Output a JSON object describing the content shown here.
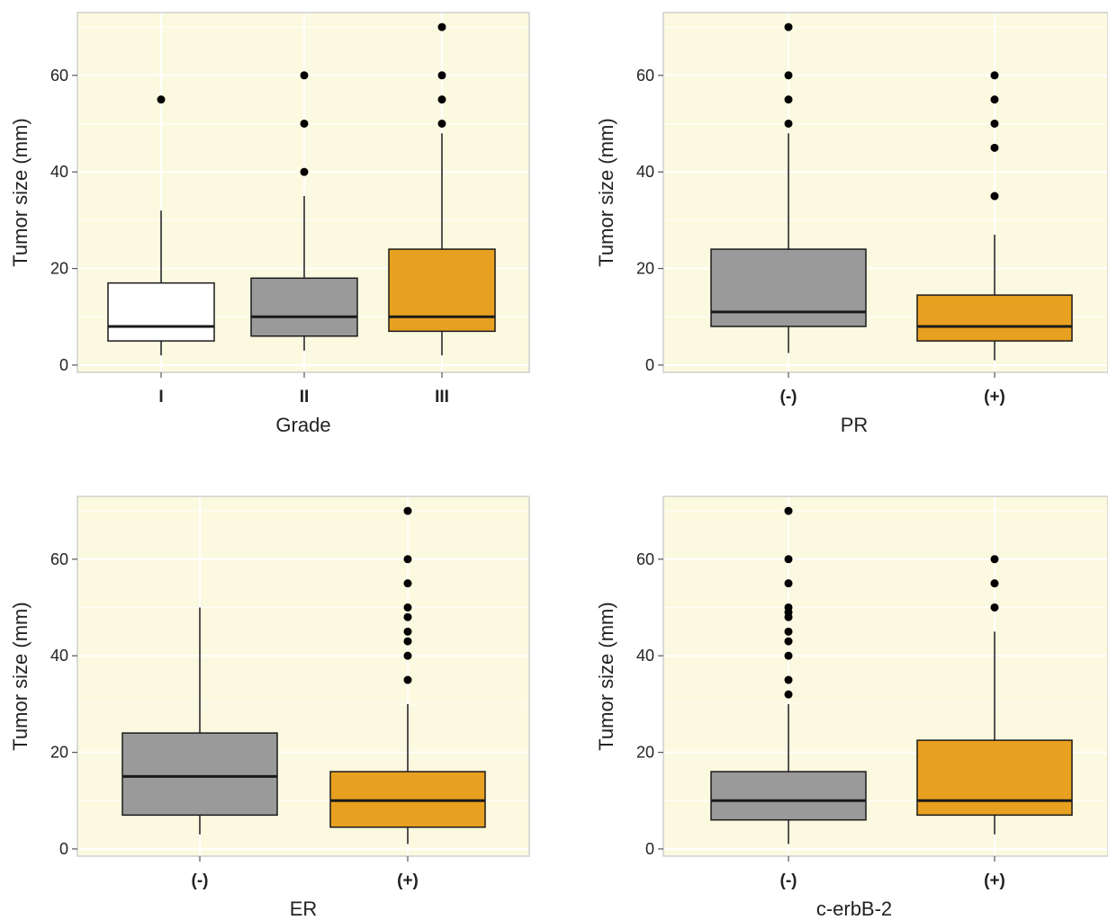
{
  "chart_data": [
    {
      "type": "box",
      "xlabel": "Grade",
      "ylabel": "Tumor size (mm)",
      "ylim": [
        -1.5,
        73
      ],
      "y_ticks": [
        0,
        20,
        40,
        60
      ],
      "grid": true,
      "categories": [
        "I",
        "II",
        "III"
      ],
      "boxes": [
        {
          "category": "I",
          "whisker_low": 2,
          "q1": 5,
          "median": 8,
          "q3": 17,
          "whisker_high": 32,
          "outliers": [
            55
          ],
          "fill": "#ffffff"
        },
        {
          "category": "II",
          "whisker_low": 3,
          "q1": 6,
          "median": 10,
          "q3": 18,
          "whisker_high": 35,
          "outliers": [
            40,
            50,
            60
          ],
          "fill": "#9a9a9a"
        },
        {
          "category": "III",
          "whisker_low": 2,
          "q1": 7,
          "median": 10,
          "q3": 24,
          "whisker_high": 48,
          "outliers": [
            50,
            55,
            60,
            70
          ],
          "fill": "#e8a020"
        }
      ]
    },
    {
      "type": "box",
      "xlabel": "PR",
      "ylabel": "Tumor size (mm)",
      "ylim": [
        -1.5,
        73
      ],
      "y_ticks": [
        0,
        20,
        40,
        60
      ],
      "grid": true,
      "categories": [
        "(-)",
        "(+)"
      ],
      "boxes": [
        {
          "category": "(-)",
          "whisker_low": 2.5,
          "q1": 8,
          "median": 11,
          "q3": 24,
          "whisker_high": 48,
          "outliers": [
            50,
            55,
            60,
            70
          ],
          "fill": "#9a9a9a"
        },
        {
          "category": "(+)",
          "whisker_low": 1,
          "q1": 5,
          "median": 8,
          "q3": 14.5,
          "whisker_high": 27,
          "outliers": [
            35,
            45,
            50,
            55,
            60
          ],
          "fill": "#e8a020"
        }
      ]
    },
    {
      "type": "box",
      "xlabel": "ER",
      "ylabel": "Tumor size (mm)",
      "ylim": [
        -1.5,
        73
      ],
      "y_ticks": [
        0,
        20,
        40,
        60
      ],
      "grid": true,
      "categories": [
        "(-)",
        "(+)"
      ],
      "boxes": [
        {
          "category": "(-)",
          "whisker_low": 3,
          "q1": 7,
          "median": 15,
          "q3": 24,
          "whisker_high": 50,
          "outliers": [],
          "fill": "#9a9a9a"
        },
        {
          "category": "(+)",
          "whisker_low": 1,
          "q1": 4.5,
          "median": 10,
          "q3": 16,
          "whisker_high": 30,
          "outliers": [
            35,
            40,
            43,
            45,
            48,
            50,
            55,
            60,
            70
          ],
          "fill": "#e8a020"
        }
      ]
    },
    {
      "type": "box",
      "xlabel": "c-erbB-2",
      "ylabel": "Tumor size (mm)",
      "ylim": [
        -1.5,
        73
      ],
      "y_ticks": [
        0,
        20,
        40,
        60
      ],
      "grid": true,
      "categories": [
        "(-)",
        "(+)"
      ],
      "boxes": [
        {
          "category": "(-)",
          "whisker_low": 1,
          "q1": 6,
          "median": 10,
          "q3": 16,
          "whisker_high": 30,
          "outliers": [
            32,
            35,
            40,
            43,
            45,
            48,
            49,
            50,
            55,
            60,
            70
          ],
          "fill": "#9a9a9a"
        },
        {
          "category": "(+)",
          "whisker_low": 3,
          "q1": 7,
          "median": 10,
          "q3": 22.5,
          "whisker_high": 45,
          "outliers": [
            50,
            55,
            60
          ],
          "fill": "#e8a020"
        }
      ]
    }
  ],
  "style": {
    "panel_background": "#fbf9df",
    "grid_color": "#ffffff",
    "frame_color": "#cfcfcf",
    "box_stroke": "#1a1a1a"
  }
}
